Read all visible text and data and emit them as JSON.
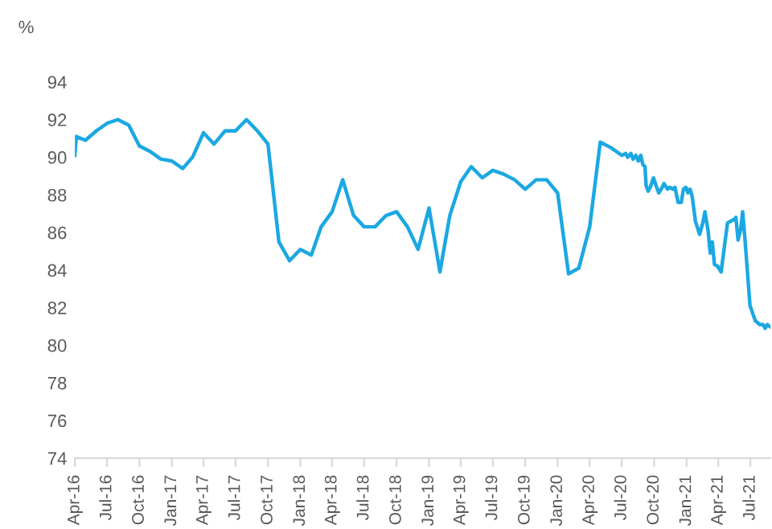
{
  "chart_data": {
    "type": "line",
    "ylabel": "%",
    "color": "#1ba8e2",
    "line_style": "solid",
    "marker": "none",
    "grid": false,
    "legend": false,
    "xlim": [
      "2016-04-01",
      "2021-08-27"
    ],
    "ylim": [
      74,
      94
    ],
    "yticks": [
      74,
      76,
      78,
      80,
      82,
      84,
      86,
      88,
      90,
      92,
      94
    ],
    "xticks": [
      {
        "value": "2016-04-01",
        "label": "Apr-16"
      },
      {
        "value": "2016-07-01",
        "label": "Jul-16"
      },
      {
        "value": "2016-10-01",
        "label": "Oct-16"
      },
      {
        "value": "2017-01-01",
        "label": "Jan-17"
      },
      {
        "value": "2017-04-01",
        "label": "Apr-17"
      },
      {
        "value": "2017-07-01",
        "label": "Jul-17"
      },
      {
        "value": "2017-10-01",
        "label": "Oct-17"
      },
      {
        "value": "2018-01-01",
        "label": "Jan-18"
      },
      {
        "value": "2018-04-01",
        "label": "Apr-18"
      },
      {
        "value": "2018-07-01",
        "label": "Jul-18"
      },
      {
        "value": "2018-10-01",
        "label": "Oct-18"
      },
      {
        "value": "2019-01-01",
        "label": "Jan-19"
      },
      {
        "value": "2019-04-01",
        "label": "Apr-19"
      },
      {
        "value": "2019-07-01",
        "label": "Jul-19"
      },
      {
        "value": "2019-10-01",
        "label": "Oct-19"
      },
      {
        "value": "2020-01-01",
        "label": "Jan-20"
      },
      {
        "value": "2020-04-01",
        "label": "Apr-20"
      },
      {
        "value": "2020-07-01",
        "label": "Jul-20"
      },
      {
        "value": "2020-10-01",
        "label": "Oct-20"
      },
      {
        "value": "2021-01-01",
        "label": "Jan-21"
      },
      {
        "value": "2021-04-01",
        "label": "Apr-21"
      },
      {
        "value": "2021-07-01",
        "label": "Jul-21"
      }
    ],
    "x": [
      "2016-04-01",
      "2016-04-05",
      "2016-05-01",
      "2016-06-01",
      "2016-07-01",
      "2016-08-01",
      "2016-09-01",
      "2016-10-01",
      "2016-11-01",
      "2016-12-01",
      "2017-01-01",
      "2017-02-01",
      "2017-03-01",
      "2017-04-01",
      "2017-05-01",
      "2017-06-01",
      "2017-07-01",
      "2017-08-01",
      "2017-09-01",
      "2017-10-01",
      "2017-11-01",
      "2017-12-01",
      "2018-01-01",
      "2018-02-01",
      "2018-03-01",
      "2018-04-01",
      "2018-05-01",
      "2018-06-01",
      "2018-07-01",
      "2018-08-01",
      "2018-09-01",
      "2018-10-01",
      "2018-11-01",
      "2018-12-01",
      "2019-01-01",
      "2019-02-01",
      "2019-03-01",
      "2019-04-01",
      "2019-05-01",
      "2019-06-01",
      "2019-07-01",
      "2019-08-01",
      "2019-09-01",
      "2019-10-01",
      "2019-11-01",
      "2019-12-01",
      "2020-01-01",
      "2020-02-01",
      "2020-03-01",
      "2020-04-01",
      "2020-05-01",
      "2020-06-01",
      "2020-07-01",
      "2020-07-12",
      "2020-07-18",
      "2020-07-27",
      "2020-08-02",
      "2020-08-10",
      "2020-08-17",
      "2020-08-24",
      "2020-08-30",
      "2020-09-05",
      "2020-09-08",
      "2020-09-14",
      "2020-09-20",
      "2020-09-29",
      "2020-10-08",
      "2020-10-14",
      "2020-10-24",
      "2020-10-29",
      "2020-11-08",
      "2020-11-14",
      "2020-11-23",
      "2020-11-29",
      "2020-12-08",
      "2020-12-17",
      "2020-12-23",
      "2020-12-30",
      "2021-01-05",
      "2021-01-11",
      "2021-01-17",
      "2021-01-26",
      "2021-02-07",
      "2021-02-16",
      "2021-02-22",
      "2021-03-03",
      "2021-03-09",
      "2021-03-15",
      "2021-03-21",
      "2021-03-30",
      "2021-04-09",
      "2021-04-27",
      "2021-05-16",
      "2021-05-21",
      "2021-05-27",
      "2021-06-03",
      "2021-06-09",
      "2021-06-15",
      "2021-06-30",
      "2021-07-15",
      "2021-07-28",
      "2021-08-06",
      "2021-08-12",
      "2021-08-18",
      "2021-08-25"
    ],
    "values": [
      90.1,
      91.1,
      90.9,
      91.4,
      91.8,
      92.0,
      91.7,
      90.6,
      90.3,
      89.9,
      89.8,
      89.4,
      90.0,
      91.3,
      90.7,
      91.4,
      91.4,
      92.0,
      91.4,
      90.7,
      85.5,
      84.5,
      85.1,
      84.8,
      86.3,
      87.1,
      88.8,
      86.9,
      86.3,
      86.3,
      86.9,
      87.1,
      86.3,
      85.1,
      87.3,
      83.9,
      86.9,
      88.7,
      89.5,
      88.9,
      89.3,
      89.1,
      88.8,
      88.3,
      88.8,
      88.8,
      88.1,
      83.8,
      84.1,
      86.3,
      90.8,
      90.5,
      90.1,
      90.2,
      90.0,
      90.2,
      89.9,
      90.1,
      89.8,
      90.1,
      89.6,
      89.5,
      88.5,
      88.2,
      88.4,
      88.9,
      88.4,
      88.1,
      88.4,
      88.6,
      88.3,
      88.4,
      88.3,
      88.4,
      87.6,
      87.6,
      88.3,
      88.4,
      88.1,
      88.3,
      87.9,
      86.6,
      85.9,
      86.5,
      87.1,
      86.1,
      84.9,
      85.5,
      84.3,
      84.2,
      83.9,
      86.5,
      86.7,
      86.8,
      85.6,
      86.1,
      87.1,
      85.8,
      82.1,
      81.3,
      81.1,
      81.1,
      80.9,
      81.1,
      81.0
    ]
  }
}
